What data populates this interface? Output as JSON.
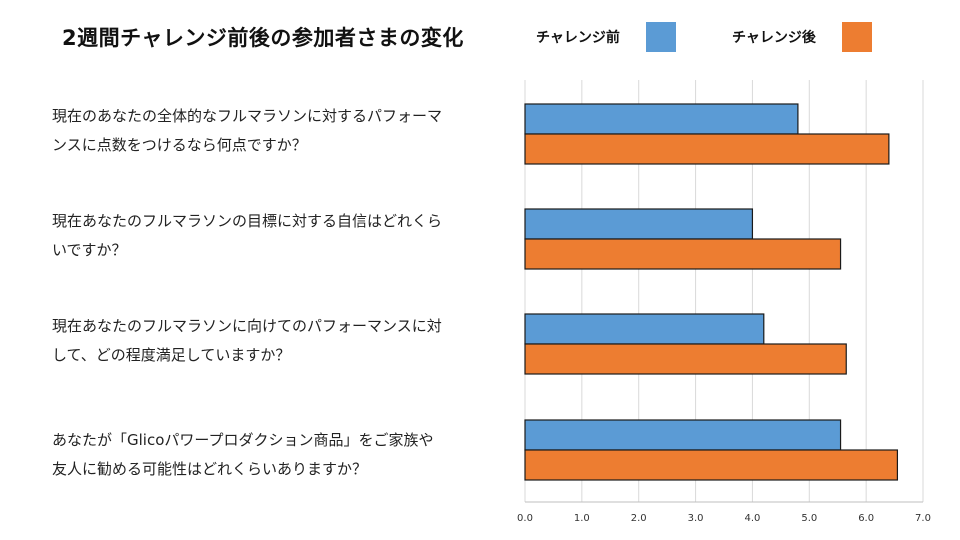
{
  "title": "2週間チャレンジ前後の参加者さまの変化",
  "legend": [
    {
      "label": "チャレンジ前",
      "color": "#5b9bd5"
    },
    {
      "label": "チャレンジ後",
      "color": "#ed7d31"
    }
  ],
  "questions": [
    {
      "line1": "現在のあなたの全体的なフルマラソンに対するパフォーマ",
      "line2": "ンスに点数をつけるなら何点ですか？"
    },
    {
      "line1": "現在あなたのフルマラソンの目標に対する自信はどれくら",
      "line2": "いですか？"
    },
    {
      "line1": "現在あなたのフルマラソンに向けてのパフォーマンスに対",
      "line2": "して、どの程度満足していますか？"
    },
    {
      "line1": "あなたが「Glicoパワープロダクション商品」をご家族や",
      "line2": "友人に勧める可能性はどれくらいありますか？"
    }
  ],
  "chart_data": {
    "type": "bar",
    "orientation": "horizontal",
    "title": "2週間チャレンジ前後の参加者さまの変化",
    "categories": [
      "現在のあなたの全体的なフルマラソンに対するパフォーマンスに点数をつけるなら何点ですか？",
      "現在あなたのフルマラソンの目標に対する自信はどれくらいですか？",
      "現在あなたのフルマラソンに向けてのパフォーマンスに対して、どの程度満足していますか？",
      "あなたが「Glicoパワープロダクション商品」をご家族や友人に勧める可能性はどれくらいありますか？"
    ],
    "series": [
      {
        "name": "チャレンジ前",
        "color": "#5b9bd5",
        "values": [
          4.8,
          4.0,
          4.2,
          5.55
        ]
      },
      {
        "name": "チャレンジ後",
        "color": "#ed7d31",
        "values": [
          6.4,
          5.55,
          5.65,
          6.55
        ]
      }
    ],
    "xlim": [
      0,
      7
    ],
    "ticks": [
      "0.0",
      "1.0",
      "2.0",
      "3.0",
      "4.0",
      "5.0",
      "6.0",
      "7.0"
    ],
    "grid": true,
    "legend_position": "top-right"
  }
}
